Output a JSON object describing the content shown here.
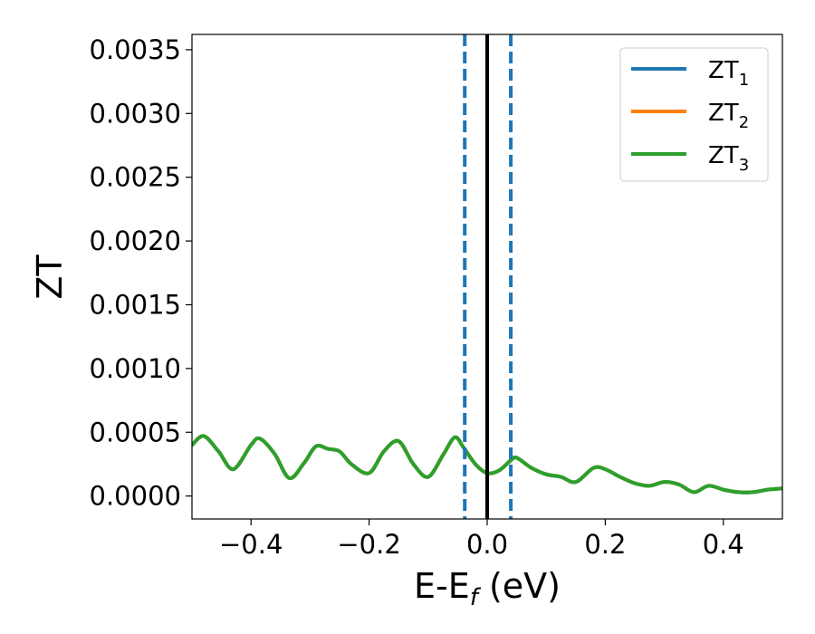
{
  "chart_data": {
    "type": "line",
    "xlabel_main": "E-E",
    "xlabel_sub": "f",
    "xlabel_unit": " (eV)",
    "ylabel": "ZT",
    "xlim": [
      -0.5,
      0.5
    ],
    "ylim": [
      -0.00018,
      0.00362
    ],
    "x_ticks": [
      -0.4,
      -0.2,
      0.0,
      0.2,
      0.4
    ],
    "x_tick_labels": [
      "−0.4",
      "−0.2",
      "0.0",
      "0.2",
      "0.4"
    ],
    "y_ticks": [
      0.0,
      0.0005,
      0.001,
      0.0015,
      0.002,
      0.0025,
      0.003,
      0.0035
    ],
    "y_tick_labels": [
      "0.0000",
      "0.0005",
      "0.0010",
      "0.0015",
      "0.0020",
      "0.0025",
      "0.0030",
      "0.0035"
    ],
    "grid": false,
    "legend_placement": "top-right",
    "vlines": [
      {
        "x": -0.038,
        "style": "dashed",
        "color": "#1f77b4"
      },
      {
        "x": 0.0,
        "style": "solid",
        "color": "#000000"
      },
      {
        "x": 0.04,
        "style": "dashed",
        "color": "#1f77b4"
      }
    ],
    "series": [
      {
        "name_main": "ZT",
        "name_sub": "1",
        "color": "#1f77b4",
        "x": [
          -0.5,
          -0.48,
          -0.455,
          -0.43,
          -0.4,
          -0.385,
          -0.36,
          -0.335,
          -0.31,
          -0.29,
          -0.27,
          -0.25,
          -0.23,
          -0.2,
          -0.175,
          -0.15,
          -0.125,
          -0.1,
          -0.075,
          -0.055,
          -0.04,
          -0.02,
          0.0,
          0.02,
          0.04,
          0.05,
          0.075,
          0.1,
          0.125,
          0.15,
          0.18,
          0.2,
          0.225,
          0.25,
          0.275,
          0.3,
          0.325,
          0.35,
          0.375,
          0.4,
          0.425,
          0.45,
          0.475,
          0.5
        ],
        "y": [
          0.0004,
          0.00047,
          0.00035,
          0.00021,
          0.0004,
          0.00045,
          0.00033,
          0.00014,
          0.00026,
          0.00039,
          0.00037,
          0.00035,
          0.00025,
          0.00018,
          0.00035,
          0.00043,
          0.00025,
          0.00015,
          0.00032,
          0.00046,
          0.00038,
          0.00025,
          0.00018,
          0.0002,
          0.00028,
          0.0003,
          0.00022,
          0.00017,
          0.00015,
          0.00011,
          0.00022,
          0.00021,
          0.00015,
          0.0001,
          8e-05,
          0.00011,
          9e-05,
          3e-05,
          8e-05,
          5e-05,
          3e-05,
          3e-05,
          5e-05,
          6e-05
        ]
      },
      {
        "name_main": "ZT",
        "name_sub": "2",
        "color": "#ff7f0e",
        "x": [
          -0.5,
          -0.48,
          -0.455,
          -0.43,
          -0.4,
          -0.385,
          -0.36,
          -0.335,
          -0.31,
          -0.29,
          -0.27,
          -0.25,
          -0.23,
          -0.2,
          -0.175,
          -0.15,
          -0.125,
          -0.1,
          -0.075,
          -0.055,
          -0.04,
          -0.02,
          0.0,
          0.02,
          0.04,
          0.05,
          0.075,
          0.1,
          0.125,
          0.15,
          0.18,
          0.2,
          0.225,
          0.25,
          0.275,
          0.3,
          0.325,
          0.35,
          0.375,
          0.4,
          0.425,
          0.45,
          0.475,
          0.5
        ],
        "y": [
          0.0004,
          0.00047,
          0.00035,
          0.00021,
          0.0004,
          0.00045,
          0.00033,
          0.00014,
          0.00026,
          0.00039,
          0.00037,
          0.00035,
          0.00025,
          0.00018,
          0.00035,
          0.00043,
          0.00025,
          0.00015,
          0.00032,
          0.00046,
          0.00038,
          0.00025,
          0.00018,
          0.0002,
          0.00028,
          0.0003,
          0.00022,
          0.00017,
          0.00015,
          0.00011,
          0.00022,
          0.00021,
          0.00015,
          0.0001,
          8e-05,
          0.00011,
          9e-05,
          3e-05,
          8e-05,
          5e-05,
          3e-05,
          3e-05,
          5e-05,
          6e-05
        ]
      },
      {
        "name_main": "ZT",
        "name_sub": "3",
        "color": "#2ca02c",
        "x": [
          -0.5,
          -0.48,
          -0.455,
          -0.43,
          -0.4,
          -0.385,
          -0.36,
          -0.335,
          -0.31,
          -0.29,
          -0.27,
          -0.25,
          -0.23,
          -0.2,
          -0.175,
          -0.15,
          -0.125,
          -0.1,
          -0.075,
          -0.055,
          -0.04,
          -0.02,
          0.0,
          0.02,
          0.04,
          0.05,
          0.075,
          0.1,
          0.125,
          0.15,
          0.18,
          0.2,
          0.225,
          0.25,
          0.275,
          0.3,
          0.325,
          0.35,
          0.375,
          0.4,
          0.425,
          0.45,
          0.475,
          0.5
        ],
        "y": [
          0.0004,
          0.00047,
          0.00035,
          0.00021,
          0.0004,
          0.00045,
          0.00033,
          0.00014,
          0.00026,
          0.00039,
          0.00037,
          0.00035,
          0.00025,
          0.00018,
          0.00035,
          0.00043,
          0.00025,
          0.00015,
          0.00032,
          0.00046,
          0.00038,
          0.00025,
          0.00018,
          0.0002,
          0.00028,
          0.0003,
          0.00022,
          0.00017,
          0.00015,
          0.00011,
          0.00022,
          0.00021,
          0.00015,
          0.0001,
          8e-05,
          0.00011,
          9e-05,
          3e-05,
          8e-05,
          5e-05,
          3e-05,
          3e-05,
          5e-05,
          6e-05
        ]
      }
    ]
  }
}
